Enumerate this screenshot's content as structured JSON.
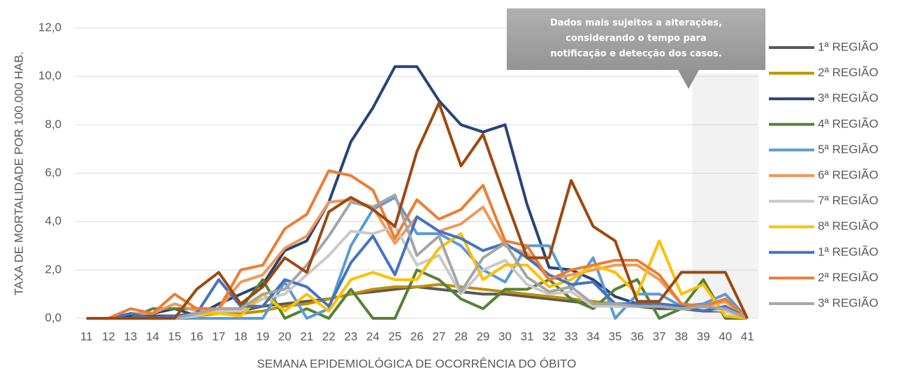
{
  "chart_data": {
    "type": "line",
    "annotations": [
      "Dados mais sujeitos a alterações,",
      "considerando o tempo para",
      "notificação e detecção dos casos."
    ],
    "x_label": "SEMANA EPIDEMIOLÓGICA DE OCORRÊNCIA  DO ÓBITO",
    "y_label": "TAXA DE MORTALIDADE POR 100.000 HAB.",
    "categories": [
      "11",
      "12",
      "13",
      "14",
      "15",
      "16",
      "17",
      "18",
      "19",
      "20",
      "21",
      "22",
      "23",
      "24",
      "25",
      "26",
      "27",
      "28",
      "29",
      "30",
      "31",
      "32",
      "33",
      "34",
      "35",
      "36",
      "37",
      "38",
      "39",
      "40",
      "41"
    ],
    "shaded_categories": [
      "39",
      "40",
      "41"
    ],
    "ylim": [
      0,
      12
    ],
    "yticks": [
      {
        "value": 0,
        "label": "0,0"
      },
      {
        "value": 2,
        "label": "2,0"
      },
      {
        "value": 4,
        "label": "4,0"
      },
      {
        "value": 6,
        "label": "6,0"
      },
      {
        "value": 8,
        "label": "8,0"
      },
      {
        "value": 10,
        "label": "10,0"
      },
      {
        "value": 12,
        "label": "12,0"
      }
    ],
    "grid": true,
    "legend": "right",
    "series": [
      {
        "name": "1ª REGIÃO",
        "color": "#595959",
        "values": [
          0,
          0,
          0,
          0.1,
          0.1,
          0.2,
          0.3,
          0.3,
          0.5,
          0.6,
          0.7,
          0.8,
          1.0,
          1.1,
          1.2,
          1.3,
          1.2,
          1.1,
          1.0,
          1.0,
          0.9,
          0.8,
          0.7,
          0.6,
          0.5,
          0.5,
          0.4,
          0.4,
          0.3,
          0.3,
          0
        ]
      },
      {
        "name": "2ª REGIÃO",
        "color": "#bf9000",
        "values": [
          0,
          0,
          0,
          0,
          0.1,
          0.1,
          0.2,
          0.2,
          0.3,
          0.5,
          0.6,
          0.8,
          1.0,
          1.2,
          1.3,
          1.3,
          1.4,
          1.3,
          1.2,
          1.1,
          1.0,
          0.9,
          0.8,
          0.7,
          0.6,
          0.6,
          0.5,
          0.4,
          0.4,
          0.3,
          0
        ]
      },
      {
        "name": "3ª REGIÃO",
        "color": "#264478",
        "values": [
          0,
          0,
          0.1,
          0.2,
          0.4,
          0.1,
          0.6,
          1.0,
          1.4,
          2.8,
          3.2,
          4.8,
          7.3,
          8.7,
          10.4,
          10.4,
          9.0,
          8.0,
          7.7,
          8.0,
          4.7,
          2.1,
          2.0,
          1.6,
          0.9,
          0.6,
          0.6,
          0.5,
          0.4,
          0.4,
          0
        ]
      },
      {
        "name": "4ª REGIÃO",
        "color": "#548235",
        "values": [
          0,
          0,
          0,
          0.4,
          0.4,
          0.4,
          0.4,
          0.4,
          1.6,
          0,
          0.4,
          0,
          1.2,
          0,
          0,
          2.0,
          1.6,
          0.8,
          0.4,
          1.2,
          1.2,
          1.6,
          0.8,
          0.4,
          1.2,
          1.6,
          0,
          0.4,
          1.6,
          0,
          0
        ]
      },
      {
        "name": "5ª REGIÃO",
        "color": "#5b9bd5",
        "values": [
          0,
          0,
          0,
          0,
          0,
          0,
          0,
          0,
          0,
          1.5,
          0,
          0.4,
          3.0,
          4.5,
          5.0,
          3.5,
          3.5,
          3.0,
          2.0,
          1.5,
          3.0,
          3.0,
          1.2,
          2.5,
          0,
          1.0,
          1.0,
          0.5,
          0.6,
          1.0,
          0
        ]
      },
      {
        "name": "6ª REGIÃO",
        "color": "#f1975a",
        "values": [
          0,
          0,
          0.2,
          0.2,
          0.6,
          0.3,
          0.4,
          1.5,
          1.8,
          2.9,
          3.4,
          4.8,
          4.9,
          4.6,
          3.1,
          4.2,
          3.6,
          3.9,
          4.6,
          3.0,
          2.7,
          1.6,
          1.8,
          2.0,
          2.2,
          2.2,
          1.6,
          0.6,
          0.5,
          0.7,
          0
        ]
      },
      {
        "name": "7ª REGIÃO",
        "color": "#c9c9c9",
        "values": [
          0,
          0,
          0,
          0,
          0,
          0.1,
          0.3,
          0.3,
          0.8,
          1.0,
          1.8,
          2.6,
          3.6,
          3.5,
          3.8,
          2.2,
          2.6,
          1.0,
          2.0,
          2.4,
          1.4,
          1.0,
          1.1,
          0.5,
          0.5,
          0.5,
          0.5,
          0.4,
          0.4,
          0.3,
          0
        ]
      },
      {
        "name": "8ª REGIÃO",
        "color": "#ffc000",
        "values": [
          0,
          0,
          0,
          0,
          0,
          0.2,
          0.2,
          0.1,
          1.0,
          0.3,
          1.0,
          0.3,
          1.6,
          1.9,
          1.6,
          1.6,
          2.9,
          3.5,
          1.6,
          2.2,
          2.2,
          1.3,
          1.6,
          2.2,
          1.9,
          1.0,
          3.2,
          1.0,
          1.4,
          0.1,
          0
        ]
      },
      {
        "name": "1ª REGIÃO",
        "color": "#4472c4",
        "values": [
          0,
          0,
          0.2,
          0,
          0.1,
          0.2,
          1.6,
          0.5,
          0.5,
          1.6,
          1.3,
          0.5,
          2.3,
          3.4,
          1.8,
          4.2,
          3.6,
          3.3,
          2.8,
          3.1,
          2.5,
          1.8,
          1.4,
          1.5,
          0.6,
          0.6,
          0.6,
          0.5,
          0.3,
          0.5,
          0
        ]
      },
      {
        "name": "2ª REGIÃO",
        "color": "#ed7d31",
        "values": [
          0,
          0,
          0.4,
          0.2,
          1.0,
          0.4,
          0.4,
          2.0,
          2.2,
          3.7,
          4.3,
          6.1,
          5.9,
          5.3,
          3.3,
          4.9,
          4.1,
          4.5,
          5.5,
          3.2,
          3.0,
          1.6,
          2.0,
          2.2,
          2.4,
          2.4,
          1.8,
          0.6,
          0.5,
          0.8,
          0
        ]
      },
      {
        "name": "3ª REGIÃO",
        "color": "#a5a5a5",
        "values": [
          0,
          0,
          0,
          0,
          0,
          0.2,
          0.4,
          0.4,
          1.0,
          1.2,
          2.2,
          3.4,
          4.8,
          4.6,
          5.1,
          2.6,
          3.4,
          1.1,
          2.5,
          3.1,
          1.7,
          1.1,
          1.3,
          0.6,
          0.6,
          0.5,
          0.5,
          0.4,
          0.5,
          0.4,
          0
        ]
      },
      {
        "color": "#9e480e",
        "values": [
          0,
          0,
          0,
          0,
          0,
          1.2,
          1.9,
          0.6,
          1.3,
          2.5,
          1.9,
          4.4,
          5.0,
          4.5,
          3.8,
          6.9,
          8.9,
          6.3,
          7.6,
          5.0,
          2.5,
          2.5,
          5.7,
          3.8,
          3.2,
          0.7,
          0.7,
          1.9,
          1.9,
          1.9,
          0
        ]
      }
    ]
  }
}
